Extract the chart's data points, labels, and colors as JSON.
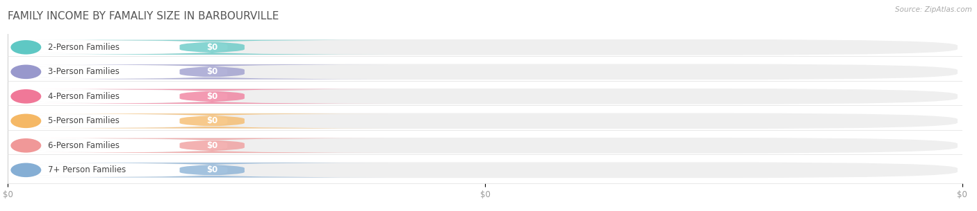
{
  "title": "FAMILY INCOME BY FAMALIY SIZE IN BARBOURVILLE",
  "source": "Source: ZipAtlas.com",
  "categories": [
    "2-Person Families",
    "3-Person Families",
    "4-Person Families",
    "5-Person Families",
    "6-Person Families",
    "7+ Person Families"
  ],
  "values": [
    0,
    0,
    0,
    0,
    0,
    0
  ],
  "bar_colors": [
    "#5fc8c4",
    "#9898cc",
    "#f07898",
    "#f5b865",
    "#f09898",
    "#85aed4"
  ],
  "background_color": "#ffffff",
  "bar_bg_color": "#efefef",
  "label_bg_color": "#fafafa",
  "title_fontsize": 11,
  "label_fontsize": 8.5,
  "value_label": "$0",
  "x_tick_labels": [
    "$0",
    "$0",
    "$0"
  ]
}
